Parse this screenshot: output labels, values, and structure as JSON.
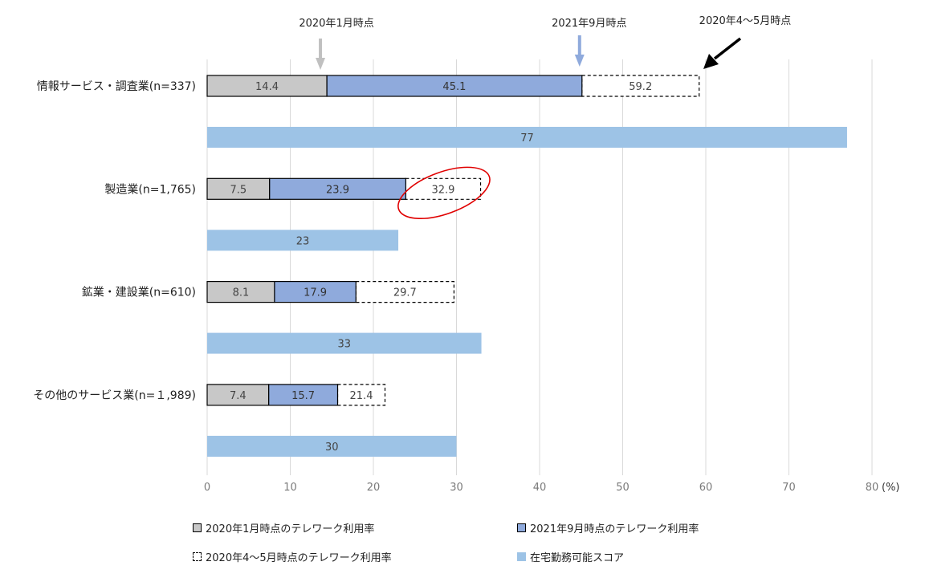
{
  "chart_data": {
    "type": "bar",
    "orientation": "horizontal",
    "categories": [
      "情報サービス・調査業(n=337)",
      "製造業(n=1,765)",
      "鉱業・建設業(n=610)",
      "その他のサービス業(n=１,989)"
    ],
    "series": [
      {
        "name": "2020年1月時点のテレワーク利用率",
        "values": [
          14.4,
          7.5,
          8.1,
          7.4
        ],
        "color": "#c8c8c8"
      },
      {
        "name": "2021年9月時点のテレワーク利用率",
        "values": [
          45.1,
          23.9,
          17.9,
          15.7
        ],
        "color": "#8faadc"
      },
      {
        "name": "2020年4～5月時点のテレワーク利用率",
        "values": [
          59.2,
          32.9,
          29.7,
          21.4
        ],
        "color": "#ffffff"
      },
      {
        "name": "在宅勤務可能スコア",
        "values": [
          77,
          23,
          33,
          30
        ],
        "color": "#9dc3e6"
      }
    ],
    "xlim": [
      0,
      80
    ],
    "xticks": [
      0,
      10,
      20,
      30,
      40,
      50,
      60,
      70,
      80
    ],
    "unit_label": "(%)",
    "grid": "vertical",
    "legend_position": "bottom",
    "annotations": [
      {
        "text": "2020年1月時点",
        "target_value": 14.4,
        "arrow_color": "#c0c0c0"
      },
      {
        "text": "2021年9月時点",
        "target_value": 45.1,
        "arrow_color": "#8faadc"
      },
      {
        "text": "2020年4～5月時点",
        "target_value": 59.2,
        "arrow_color": "#000000"
      }
    ],
    "highlight": {
      "category_index": 1,
      "series_index": 2,
      "color": "#e00000"
    }
  }
}
